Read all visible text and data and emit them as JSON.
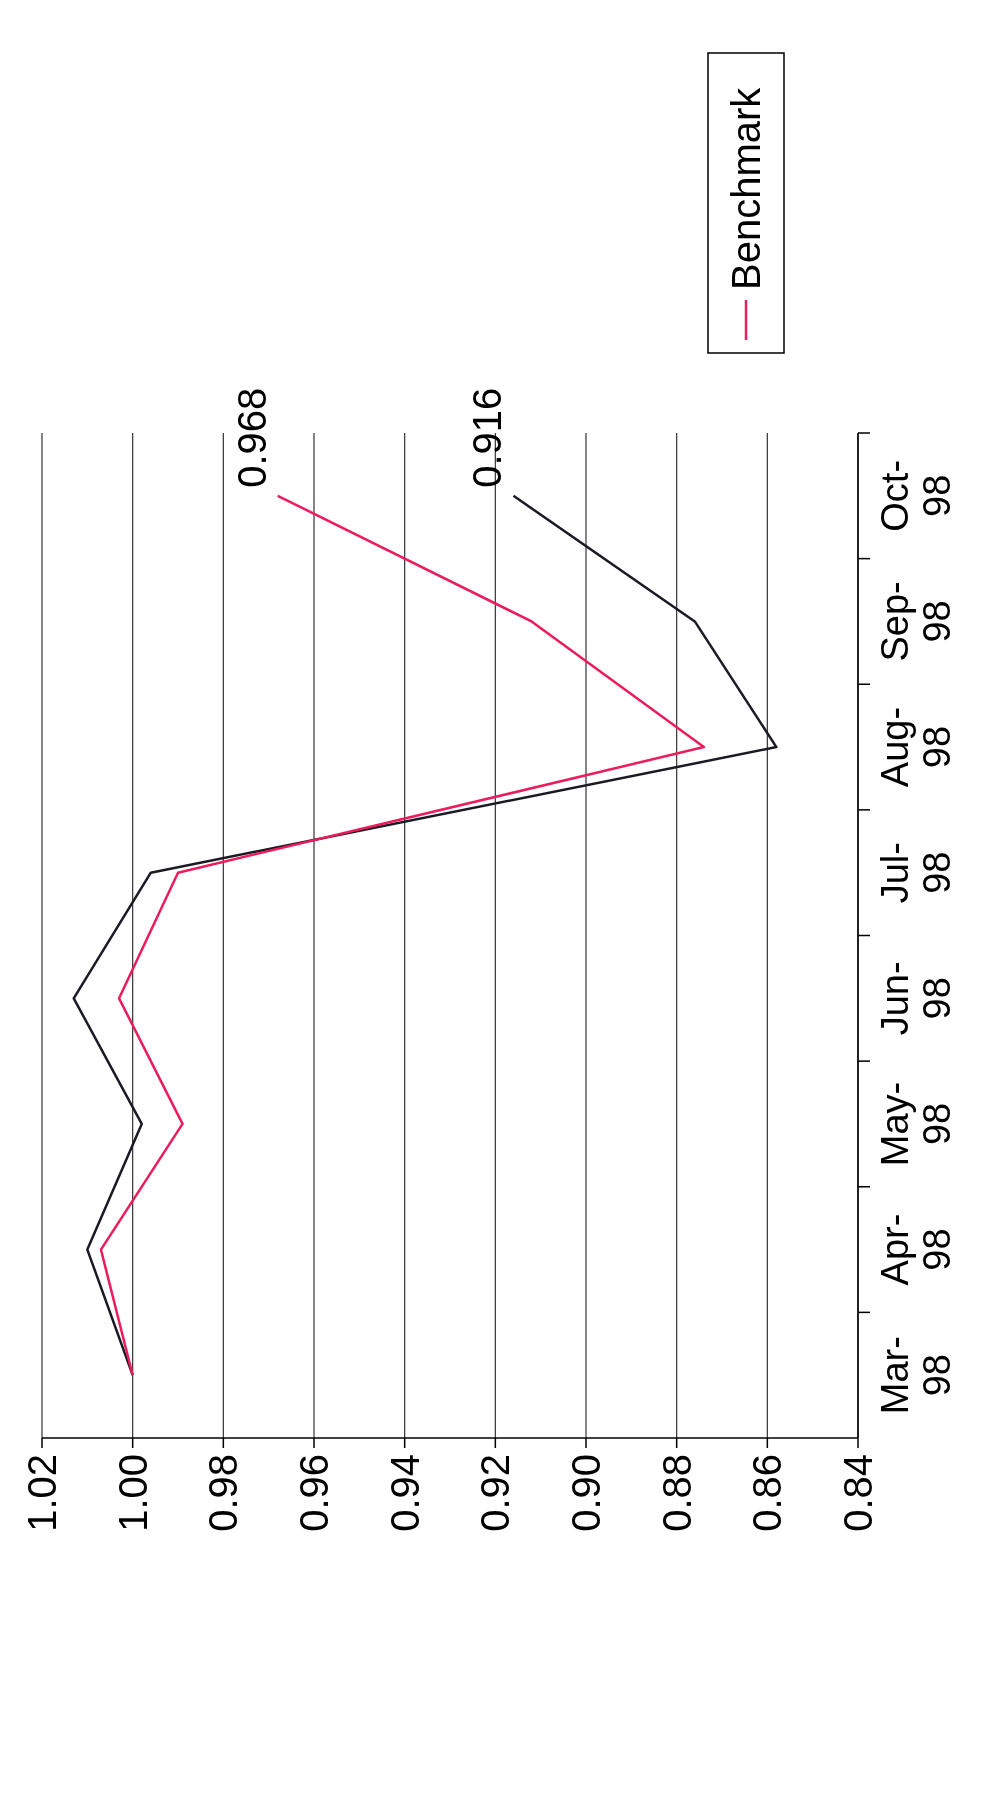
{
  "chart_data": {
    "type": "line",
    "orientation": "horizontal",
    "categories": [
      "Oct-98",
      "Sep-98",
      "Aug-98",
      "Jul-98",
      "Jun-98",
      "May-98",
      "Apr-98",
      "Mar-98"
    ],
    "series": [
      {
        "color": "#1a1a24",
        "values": [
          0.916,
          0.876,
          0.858,
          0.996,
          1.013,
          0.998,
          1.01,
          1.0
        ],
        "value_labels": [
          "0.916",
          null,
          null,
          null,
          null,
          null,
          null,
          null
        ]
      },
      {
        "name": "Benchmark",
        "color": "#ec1c5c",
        "values": [
          0.968,
          0.912,
          0.874,
          0.99,
          1.003,
          0.989,
          1.007,
          1.0
        ],
        "value_labels": [
          "0.968",
          null,
          null,
          null,
          null,
          null,
          null,
          null
        ]
      }
    ],
    "xlim": [
      1.02,
      0.84
    ],
    "xticks": [
      1.02,
      {
        "value": 1,
        "label": "1.00"
      },
      0.98,
      0.96,
      0.94,
      0.92,
      {
        "value": 0.9,
        "label": "0.90"
      },
      0.88,
      0.86,
      0.84
    ],
    "grid": "x",
    "legend": "top right",
    "marker": "none",
    "line_style": "solid"
  }
}
